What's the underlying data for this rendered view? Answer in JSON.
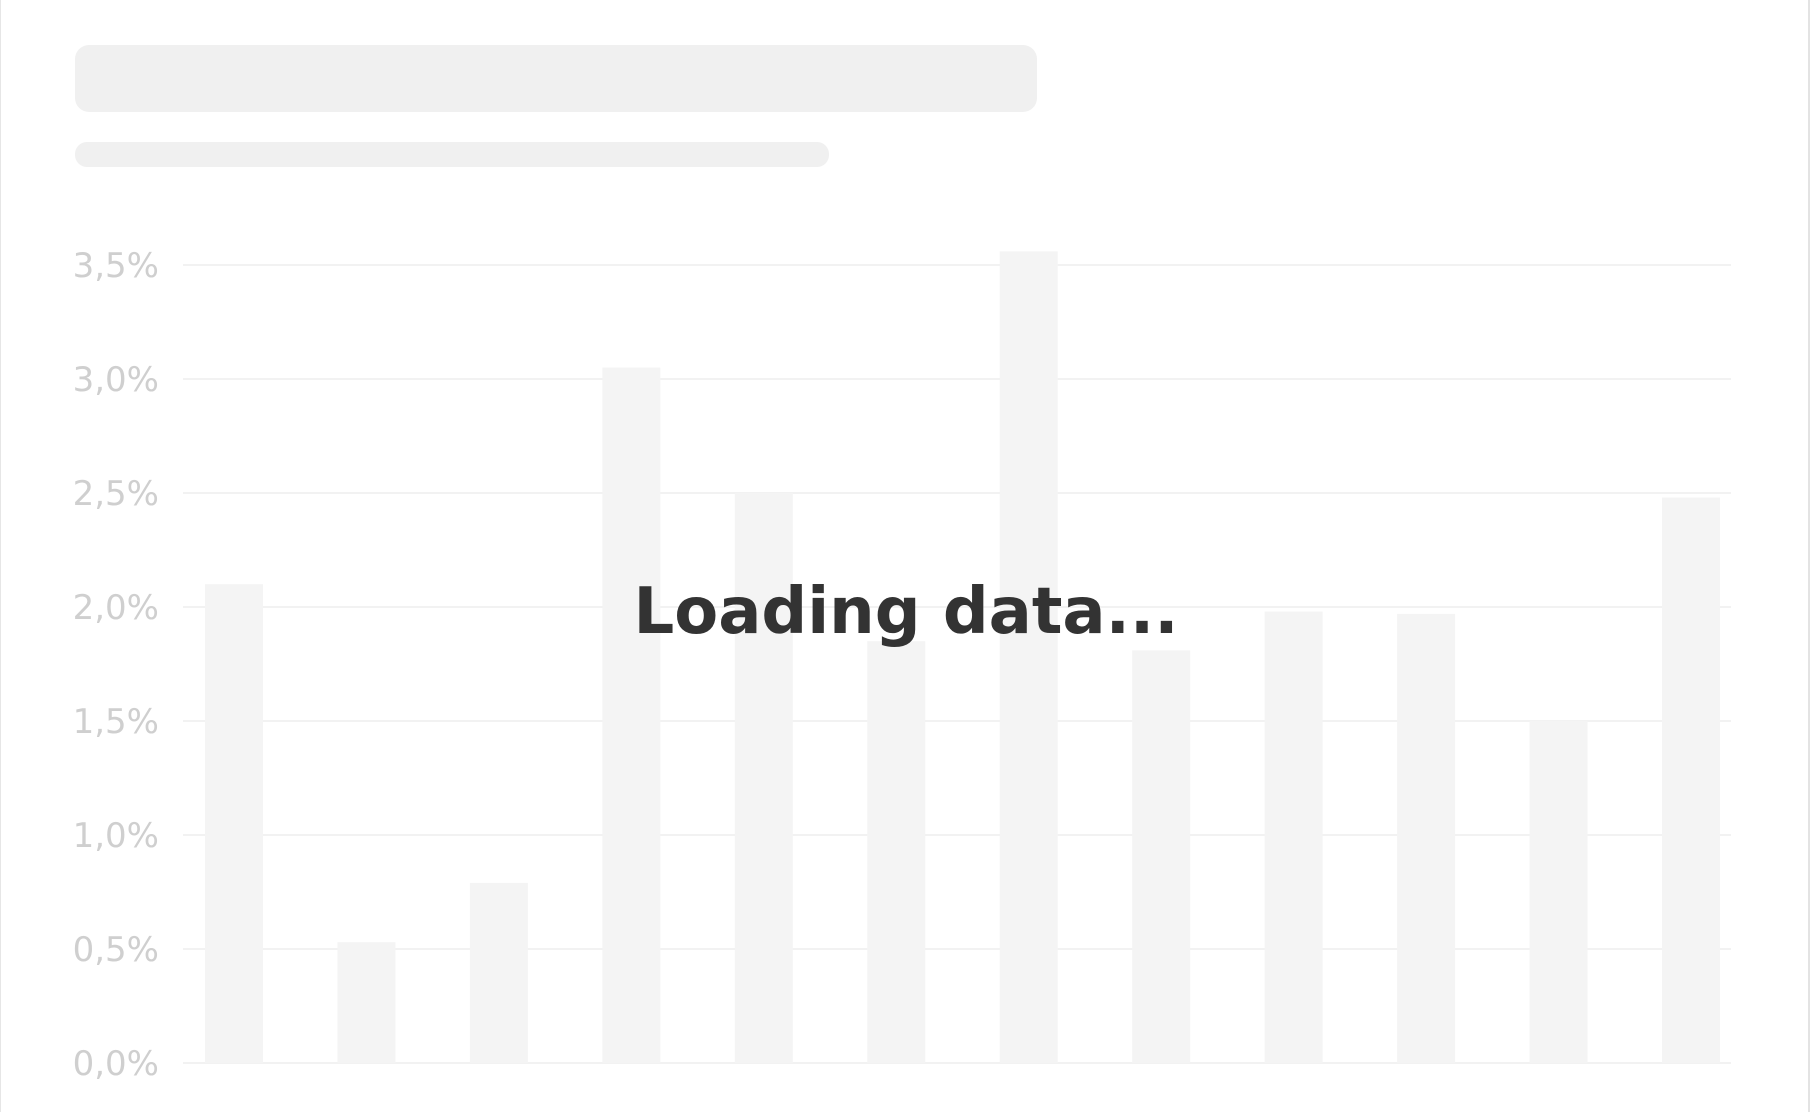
{
  "loading": {
    "message": "Loading data..."
  },
  "colors": {
    "skeleton": "#f0f0f0",
    "bar": "#f4f4f4",
    "grid": "#f2f2f2",
    "tick_text": "#cfcfcf",
    "loading_text": "#333333"
  },
  "chart_data": {
    "type": "bar",
    "title": "",
    "xlabel": "",
    "ylabel": "",
    "ylim": [
      0,
      3.5
    ],
    "yticks": [
      "0,0%",
      "0,5%",
      "1,0%",
      "1,5%",
      "2,0%",
      "2,5%",
      "3,0%",
      "3,5%"
    ],
    "ytick_values": [
      0,
      0.5,
      1.0,
      1.5,
      2.0,
      2.5,
      3.0,
      3.5
    ],
    "grid": true,
    "categories": [
      "",
      "",
      "",
      "",
      "",
      "",
      "",
      "",
      "",
      "",
      "",
      ""
    ],
    "values": [
      2.1,
      0.53,
      0.79,
      3.05,
      2.5,
      1.85,
      3.56,
      1.81,
      1.98,
      1.97,
      1.5,
      2.48
    ]
  }
}
